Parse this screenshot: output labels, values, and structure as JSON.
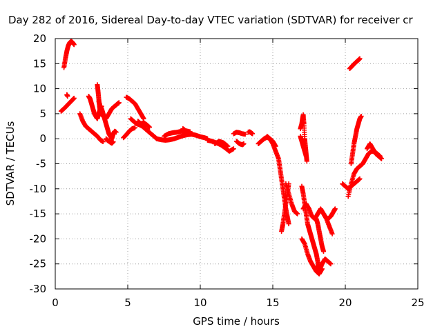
{
  "chart_data": {
    "type": "scatter",
    "title": "Day 282 of 2016, Sidereal Day-to-day VTEC variation (SDTVAR) for receiver cr",
    "xlabel": "GPS time / hours",
    "ylabel": "SDTVAR / TECUs",
    "xlim": [
      0,
      25
    ],
    "ylim": [
      -30,
      20
    ],
    "xticks": [
      0,
      5,
      10,
      15,
      20,
      25
    ],
    "yticks": [
      -30,
      -25,
      -20,
      -15,
      -10,
      -5,
      0,
      5,
      10,
      15,
      20
    ],
    "grid": true,
    "marker": "plus",
    "color": "#ff0000",
    "series": [
      {
        "x": [
          0.6,
          0.7,
          0.8,
          0.9,
          1.0,
          1.1,
          1.2,
          1.3
        ],
        "y": [
          14.2,
          16.0,
          17.5,
          18.6,
          19.2,
          19.5,
          19.2,
          18.8
        ]
      },
      {
        "x": [
          0.4,
          0.6,
          0.8,
          1.0,
          1.2,
          1.3
        ],
        "y": [
          5.5,
          6.0,
          6.6,
          7.2,
          7.8,
          8.1
        ]
      },
      {
        "x": [
          0.8,
          0.85
        ],
        "y": [
          8.8,
          8.5
        ]
      },
      {
        "x": [
          1.7,
          1.9,
          2.1,
          2.3,
          2.5,
          2.7,
          2.9,
          3.1,
          3.3
        ],
        "y": [
          5.0,
          3.5,
          2.5,
          2.0,
          1.5,
          1.0,
          0.5,
          -0.2,
          -0.6
        ]
      },
      {
        "x": [
          2.3,
          2.4,
          2.5,
          2.6,
          2.7,
          2.8,
          2.9,
          3.0,
          3.1,
          3.2
        ],
        "y": [
          8.5,
          8.0,
          7.0,
          6.0,
          5.0,
          4.5,
          4.0,
          5.0,
          6.0,
          6.5
        ]
      },
      {
        "x": [
          2.9,
          2.95,
          3.0,
          3.05,
          3.1,
          3.2
        ],
        "y": [
          10.8,
          9.5,
          8.0,
          6.5,
          5.5,
          5.0
        ]
      },
      {
        "x": [
          3.2,
          3.3,
          3.4,
          3.5,
          3.6,
          3.7,
          3.8,
          3.9,
          4.0,
          4.1,
          4.2
        ],
        "y": [
          6.0,
          5.0,
          4.0,
          3.0,
          2.0,
          1.0,
          0.5,
          0.0,
          1.0,
          1.5,
          1.3
        ]
      },
      {
        "x": [
          3.0,
          3.1,
          3.2,
          3.3,
          3.5,
          3.7,
          3.9,
          4.1,
          4.3,
          4.4
        ],
        "y": [
          7.5,
          6.5,
          5.5,
          4.5,
          4.0,
          5.0,
          6.0,
          6.5,
          7.0,
          7.2
        ]
      },
      {
        "x": [
          3.5,
          3.6,
          3.7,
          3.8,
          3.9,
          4.0
        ],
        "y": [
          0.0,
          -0.3,
          -0.5,
          -0.7,
          -0.9,
          -0.6
        ]
      },
      {
        "x": [
          4.7,
          4.9,
          5.1,
          5.3,
          5.5
        ],
        "y": [
          0.2,
          0.8,
          1.5,
          2.0,
          2.2
        ]
      },
      {
        "x": [
          4.9,
          5.1,
          5.3,
          5.5,
          5.7,
          5.9,
          6.1
        ],
        "y": [
          8.3,
          8.0,
          7.5,
          7.0,
          6.0,
          5.0,
          4.0
        ]
      },
      {
        "x": [
          5.2,
          5.4,
          5.6,
          5.8,
          6.0,
          6.2,
          6.4,
          6.6,
          6.8,
          7.0
        ],
        "y": [
          4.0,
          3.5,
          3.0,
          2.8,
          2.5,
          2.0,
          1.5,
          1.0,
          0.5,
          0.0
        ]
      },
      {
        "x": [
          5.7,
          5.9,
          6.1,
          6.3,
          6.5
        ],
        "y": [
          3.5,
          3.0,
          3.2,
          2.8,
          2.3
        ]
      },
      {
        "x": [
          7.0,
          7.3,
          7.6,
          7.9,
          8.2,
          8.5,
          8.8,
          9.1,
          9.4,
          9.7,
          10.0,
          10.3,
          10.5
        ],
        "y": [
          0.0,
          -0.2,
          -0.3,
          -0.2,
          0.0,
          0.3,
          0.6,
          0.8,
          0.9,
          0.7,
          0.4,
          0.2,
          0.0
        ]
      },
      {
        "x": [
          7.5,
          7.8,
          8.1,
          8.4,
          8.7,
          9.0,
          9.3
        ],
        "y": [
          0.5,
          1.0,
          1.2,
          1.3,
          1.5,
          1.6,
          1.4
        ]
      },
      {
        "x": [
          8.8,
          8.9,
          9.0
        ],
        "y": [
          2.0,
          1.8,
          1.5
        ]
      },
      {
        "x": [
          10.5,
          10.8,
          11.1,
          11.4,
          11.7,
          12.0,
          12.3
        ],
        "y": [
          -0.3,
          -0.5,
          -0.8,
          -1.2,
          -1.8,
          -2.5,
          -2.0
        ]
      },
      {
        "x": [
          11.0,
          11.3,
          11.6,
          11.9
        ],
        "y": [
          -1.0,
          -0.5,
          -0.8,
          -1.5
        ]
      },
      {
        "x": [
          12.3,
          12.5,
          12.7,
          12.9,
          13.1
        ],
        "y": [
          1.0,
          1.3,
          1.2,
          1.0,
          0.9
        ]
      },
      {
        "x": [
          12.5,
          12.7,
          12.9,
          13.0
        ],
        "y": [
          -0.5,
          -1.0,
          -1.2,
          -1.0
        ]
      },
      {
        "x": [
          13.3,
          13.4,
          13.5,
          13.6
        ],
        "y": [
          1.3,
          1.4,
          1.2,
          1.0
        ]
      },
      {
        "x": [
          14.0,
          14.2,
          14.4,
          14.6,
          14.8,
          15.0,
          15.2
        ],
        "y": [
          -1.0,
          -0.5,
          0.0,
          0.3,
          0.0,
          -0.5,
          -1.5
        ]
      },
      {
        "x": [
          14.6,
          14.8,
          15.0,
          15.2,
          15.4,
          15.5,
          15.6,
          15.7,
          15.8,
          15.9,
          16.0,
          16.1
        ],
        "y": [
          0.5,
          0.0,
          -1.0,
          -2.5,
          -4.0,
          -6.0,
          -8.0,
          -10.0,
          -12.0,
          -14.0,
          -15.5,
          -17.0
        ]
      },
      {
        "x": [
          15.6,
          15.7,
          15.8,
          15.9,
          16.0,
          16.1
        ],
        "y": [
          -18.5,
          -17.0,
          -15.0,
          -13.0,
          -11.0,
          -9.0
        ]
      },
      {
        "x": [
          15.9,
          16.1,
          16.3,
          16.5,
          16.7
        ],
        "y": [
          -9.0,
          -11.0,
          -13.0,
          -14.5,
          -15.0
        ]
      },
      {
        "x": [
          16.9,
          17.0,
          17.05,
          17.1,
          17.15,
          17.2,
          17.25,
          17.3,
          17.35
        ],
        "y": [
          2.0,
          3.0,
          4.0,
          4.8,
          3.0,
          0.0,
          -1.5,
          -3.0,
          -4.5
        ]
      },
      {
        "x": [
          16.9,
          17.0,
          17.1,
          17.2,
          17.3
        ],
        "y": [
          0.5,
          -0.5,
          -1.5,
          -2.5,
          -3.5
        ]
      },
      {
        "x": [
          17.0,
          17.1,
          17.2,
          17.3,
          17.4,
          17.5,
          17.6,
          17.7,
          17.8,
          17.9,
          18.0,
          18.1,
          18.2
        ],
        "y": [
          -9.5,
          -11.0,
          -13.0,
          -15.0,
          -17.0,
          -18.0,
          -19.0,
          -20.0,
          -21.0,
          -22.0,
          -23.0,
          -24.5,
          -26.0
        ]
      },
      {
        "x": [
          17.1,
          17.3,
          17.5,
          17.7,
          17.9,
          18.1,
          18.3,
          18.5,
          18.7,
          18.9,
          19.1
        ],
        "y": [
          -14.0,
          -13.0,
          -14.0,
          -15.5,
          -16.0,
          -15.0,
          -14.0,
          -15.0,
          -16.0,
          -17.5,
          -19.0
        ]
      },
      {
        "x": [
          17.0,
          17.2,
          17.4,
          17.6,
          17.8,
          18.0,
          18.2,
          18.4
        ],
        "y": [
          -20.0,
          -21.0,
          -23.0,
          -24.5,
          -25.5,
          -26.5,
          -27.0,
          -26.0
        ]
      },
      {
        "x": [
          18.0,
          18.2,
          18.4,
          18.6,
          18.8,
          19.0
        ],
        "y": [
          -25.5,
          -26.5,
          -25.0,
          -24.0,
          -24.5,
          -25.0
        ]
      },
      {
        "x": [
          18.0,
          18.1,
          18.2,
          18.3,
          18.4,
          18.5
        ],
        "y": [
          -16.0,
          -17.0,
          -18.5,
          -20.0,
          -21.5,
          -22.5
        ]
      },
      {
        "x": [
          18.6,
          18.8,
          19.0,
          19.2,
          19.3
        ],
        "y": [
          -15.5,
          -16.0,
          -15.5,
          -14.5,
          -14.0
        ]
      },
      {
        "x": [
          19.8,
          20.0,
          20.2,
          20.4,
          20.6,
          20.8,
          21.0
        ],
        "y": [
          -9.0,
          -9.5,
          -10.0,
          -9.5,
          -9.0,
          -8.5,
          -8.0
        ]
      },
      {
        "x": [
          20.2,
          20.4,
          20.6,
          20.8,
          21.0,
          21.2,
          21.4,
          21.6,
          21.8,
          22.0,
          22.2,
          22.4
        ],
        "y": [
          -11.5,
          -9.0,
          -7.0,
          -6.0,
          -5.5,
          -5.0,
          -4.0,
          -3.0,
          -2.5,
          -2.5,
          -3.0,
          -3.5
        ]
      },
      {
        "x": [
          20.4,
          20.5,
          20.6,
          20.7,
          20.8,
          20.9,
          21.0,
          21.1
        ],
        "y": [
          -5.0,
          -3.0,
          -1.0,
          0.5,
          2.0,
          3.0,
          4.0,
          4.5
        ]
      },
      {
        "x": [
          21.5,
          21.7,
          21.9,
          22.1,
          22.3,
          22.5
        ],
        "y": [
          -2.0,
          -1.0,
          -2.0,
          -3.0,
          -3.5,
          -4.0
        ]
      },
      {
        "x": [
          20.3,
          20.5,
          20.7,
          20.9,
          21.0
        ],
        "y": [
          14.0,
          14.6,
          15.2,
          15.7,
          16.0
        ]
      }
    ]
  }
}
